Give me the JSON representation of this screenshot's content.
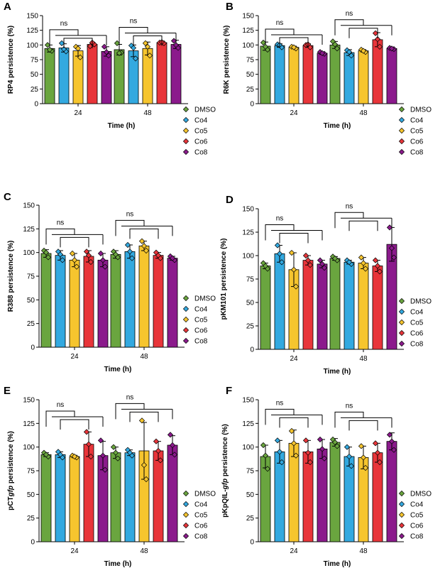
{
  "colors": {
    "DMSO": "#6aa53f",
    "Co4": "#33a9e0",
    "Co5": "#f6c52e",
    "Co6": "#e8353a",
    "Co8": "#8b1a8c",
    "axis": "#000000"
  },
  "chart_data": [
    {
      "panel": "A",
      "type": "bar",
      "ylabel": "RP4 persistence (%)",
      "xlabel": "Time (h)",
      "ylim": [
        0,
        150
      ],
      "yticks": [
        0,
        25,
        50,
        75,
        100,
        125,
        150
      ],
      "categories": [
        "24",
        "48"
      ],
      "series": [
        {
          "name": "DMSO",
          "values": [
            94,
            92
          ],
          "errors": [
            6,
            9
          ],
          "points": [
            [
              100,
              90,
              92
            ],
            [
              103,
              87,
              86
            ]
          ]
        },
        {
          "name": "Co4",
          "values": [
            95,
            90
          ],
          "errors": [
            7,
            10
          ],
          "points": [
            [
              103,
              89,
              93
            ],
            [
              99,
              77,
              95
            ]
          ]
        },
        {
          "name": "Co5",
          "values": [
            90,
            94
          ],
          "errors": [
            9,
            11
          ],
          "points": [
            [
              97,
              79,
              94
            ],
            [
              103,
              82,
              97
            ]
          ]
        },
        {
          "name": "Co6",
          "values": [
            101,
            104
          ],
          "errors": [
            3,
            2
          ],
          "points": [
            [
              98,
              101,
              104
            ],
            [
              104,
              103,
              105
            ]
          ]
        },
        {
          "name": "Co8",
          "values": [
            89,
            101
          ],
          "errors": [
            8,
            7
          ],
          "points": [
            [
              97,
              82,
              88
            ],
            [
              107,
              95,
              100
            ]
          ]
        }
      ],
      "significance": [
        "ns",
        "ns"
      ]
    },
    {
      "panel": "B",
      "type": "bar",
      "ylabel": "R6K persistence (%)",
      "xlabel": "Time (h)",
      "ylim": [
        0,
        150
      ],
      "yticks": [
        0,
        25,
        50,
        75,
        100,
        125,
        150
      ],
      "categories": [
        "24",
        "48"
      ],
      "series": [
        {
          "name": "DMSO",
          "values": [
            98,
            100
          ],
          "errors": [
            7,
            6
          ],
          "points": [
            [
              104,
              92,
              97
            ],
            [
              106,
              94,
              101
            ]
          ]
        },
        {
          "name": "Co4",
          "values": [
            99,
            87
          ],
          "errors": [
            3,
            5
          ],
          "points": [
            [
              101,
              96,
              100
            ],
            [
              91,
              82,
              88
            ]
          ]
        },
        {
          "name": "Co5",
          "values": [
            96,
            90
          ],
          "errors": [
            2,
            2
          ],
          "points": [
            [
              97,
              94,
              96
            ],
            [
              92,
              88,
              90
            ]
          ]
        },
        {
          "name": "Co6",
          "values": [
            99,
            109
          ],
          "errors": [
            3,
            12
          ],
          "points": [
            [
              100,
              96,
              101
            ],
            [
              120,
              97,
              110
            ]
          ]
        },
        {
          "name": "Co8",
          "values": [
            86,
            94
          ],
          "errors": [
            2,
            1
          ],
          "points": [
            [
              88,
              85,
              86
            ],
            [
              95,
              93,
              94
            ]
          ]
        }
      ],
      "significance": [
        "ns",
        "ns"
      ]
    },
    {
      "panel": "C",
      "type": "bar",
      "ylabel": "R388 persistence (%)",
      "xlabel": "Time (h)",
      "ylim": [
        0,
        150
      ],
      "yticks": [
        0,
        25,
        50,
        75,
        100,
        125,
        150
      ],
      "categories": [
        "24",
        "48"
      ],
      "series": [
        {
          "name": "DMSO",
          "values": [
            99,
            98
          ],
          "errors": [
            4,
            4
          ],
          "points": [
            [
              102,
              95,
              100
            ],
            [
              101,
              95,
              98
            ]
          ]
        },
        {
          "name": "Co4",
          "values": [
            97,
            101
          ],
          "errors": [
            5,
            7
          ],
          "points": [
            [
              101,
              92,
              98
            ],
            [
              108,
              94,
              101
            ]
          ]
        },
        {
          "name": "Co5",
          "values": [
            92,
            107
          ],
          "errors": [
            7,
            5
          ],
          "points": [
            [
              99,
              85,
              92
            ],
            [
              112,
              102,
              107
            ]
          ]
        },
        {
          "name": "Co6",
          "values": [
            96,
            97
          ],
          "errors": [
            6,
            3
          ],
          "points": [
            [
              101,
              90,
              97
            ],
            [
              100,
              94,
              97
            ]
          ]
        },
        {
          "name": "Co8",
          "values": [
            92,
            94
          ],
          "errors": [
            7,
            2
          ],
          "points": [
            [
              99,
              85,
              92
            ],
            [
              96,
              92,
              94
            ]
          ]
        }
      ],
      "significance": [
        "ns",
        "ns"
      ]
    },
    {
      "panel": "D",
      "type": "bar",
      "ylabel": "pKM101 persistence (%)",
      "xlabel": "Time (h)",
      "ylim": [
        0,
        150
      ],
      "yticks": [
        0,
        25,
        50,
        75,
        100,
        125,
        150
      ],
      "categories": [
        "24",
        "48"
      ],
      "series": [
        {
          "name": "DMSO",
          "values": [
            89,
            97
          ],
          "errors": [
            3,
            2
          ],
          "points": [
            [
              92,
              86,
              89
            ],
            [
              99,
              95,
              97
            ]
          ]
        },
        {
          "name": "Co4",
          "values": [
            102,
            93
          ],
          "errors": [
            9,
            2
          ],
          "points": [
            [
              111,
              93,
              102
            ],
            [
              95,
              91,
              93
            ]
          ]
        },
        {
          "name": "Co5",
          "values": [
            85,
            92
          ],
          "errors": [
            18,
            6
          ],
          "points": [
            [
              103,
              67,
              85
            ],
            [
              98,
              86,
              92
            ]
          ]
        },
        {
          "name": "Co6",
          "values": [
            95,
            89
          ],
          "errors": [
            5,
            6
          ],
          "points": [
            [
              100,
              90,
              95
            ],
            [
              95,
              83,
              89
            ]
          ]
        },
        {
          "name": "Co8",
          "values": [
            91,
            112
          ],
          "errors": [
            4,
            18
          ],
          "points": [
            [
              95,
              87,
              91
            ],
            [
              130,
              98,
              108
            ]
          ]
        }
      ],
      "significance": [
        "ns",
        "ns"
      ]
    },
    {
      "panel": "E",
      "type": "bar",
      "ylabel_prefix": "pCT",
      "ylabel_italic": "gfp",
      "ylabel_suffix": " persistence (%)",
      "xlabel": "Time (h)",
      "ylim": [
        0,
        150
      ],
      "yticks": [
        0,
        25,
        50,
        75,
        100,
        125,
        150
      ],
      "categories": [
        "24",
        "48"
      ],
      "series": [
        {
          "name": "DMSO",
          "values": [
            92,
            94
          ],
          "errors": [
            2,
            6
          ],
          "points": [
            [
              94,
              90,
              92
            ],
            [
              100,
              88,
              94
            ]
          ]
        },
        {
          "name": "Co4",
          "values": [
            92,
            94
          ],
          "errors": [
            3,
            3
          ],
          "points": [
            [
              95,
              89,
              92
            ],
            [
              97,
              91,
              94
            ]
          ]
        },
        {
          "name": "Co5",
          "values": [
            90,
            96
          ],
          "errors": [
            1,
            30
          ],
          "points": [
            [
              91,
              89,
              90
            ],
            [
              128,
              66,
              81
            ]
          ]
        },
        {
          "name": "Co6",
          "values": [
            103,
            96
          ],
          "errors": [
            13,
            10
          ],
          "points": [
            [
              116,
              90,
              103
            ],
            [
              106,
              86,
              96
            ]
          ]
        },
        {
          "name": "Co8",
          "values": [
            91,
            102
          ],
          "errors": [
            15,
            10
          ],
          "points": [
            [
              107,
              76,
              91
            ],
            [
              113,
              92,
              102
            ]
          ]
        }
      ],
      "significance": [
        "ns",
        "ns"
      ]
    },
    {
      "panel": "F",
      "type": "bar",
      "ylabel_prefix": "pKpQIL-",
      "ylabel_italic": "gfp",
      "ylabel_suffix": " persistence (%)",
      "xlabel": "Time (h)",
      "ylim": [
        0,
        150
      ],
      "yticks": [
        0,
        25,
        50,
        75,
        100,
        125,
        150
      ],
      "categories": [
        "24",
        "48"
      ],
      "series": [
        {
          "name": "DMSO",
          "values": [
            90,
            105
          ],
          "errors": [
            12,
            4
          ],
          "points": [
            [
              102,
              77,
              91
            ],
            [
              108,
              101,
              105
            ]
          ]
        },
        {
          "name": "Co4",
          "values": [
            95,
            90
          ],
          "errors": [
            12,
            10
          ],
          "points": [
            [
              107,
              84,
              95
            ],
            [
              100,
              80,
              90
            ]
          ]
        },
        {
          "name": "Co5",
          "values": [
            104,
            89
          ],
          "errors": [
            14,
            12
          ],
          "points": [
            [
              117,
              91,
              104
            ],
            [
              101,
              78,
              89
            ]
          ]
        },
        {
          "name": "Co6",
          "values": [
            95,
            94
          ],
          "errors": [
            12,
            10
          ],
          "points": [
            [
              107,
              84,
              94
            ],
            [
              104,
              84,
              94
            ]
          ]
        },
        {
          "name": "Co8",
          "values": [
            98,
            106
          ],
          "errors": [
            10,
            9
          ],
          "points": [
            [
              108,
              88,
              98
            ],
            [
              113,
              97,
              106
            ]
          ]
        }
      ],
      "significance": [
        "ns",
        "ns"
      ]
    }
  ]
}
